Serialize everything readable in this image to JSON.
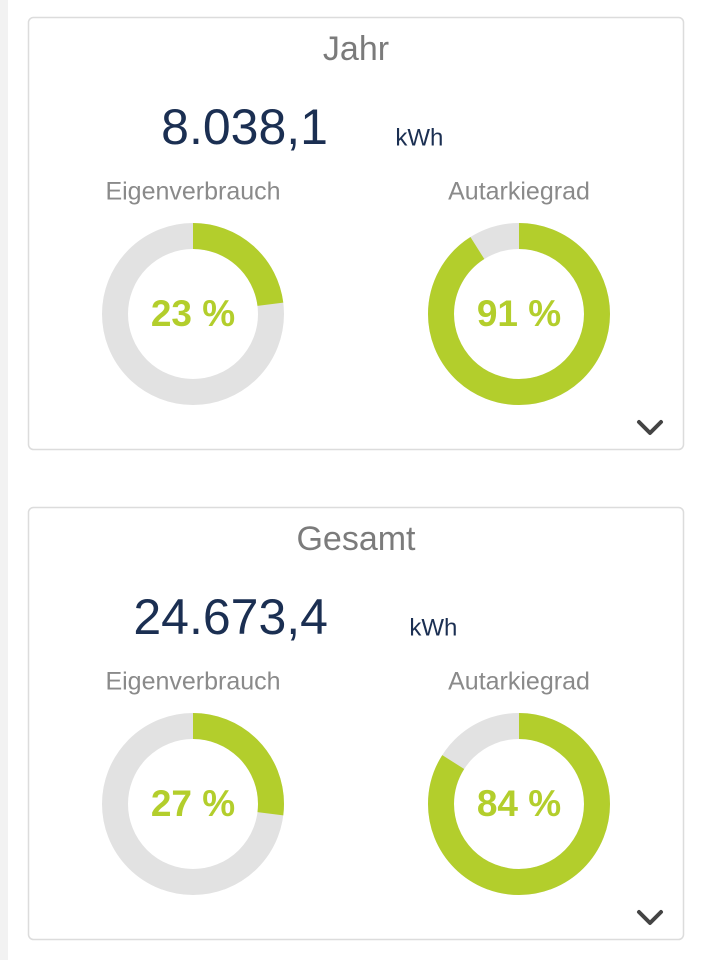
{
  "cards": [
    {
      "title": "Jahr",
      "energy": "8.038,1",
      "unit": "kWh",
      "gauges": [
        {
          "label": "Eigenverbrauch",
          "value": 23,
          "value_label": "23 %"
        },
        {
          "label": "Autarkiegrad",
          "value": 91,
          "value_label": "91 %"
        }
      ]
    },
    {
      "title": "Gesamt",
      "energy": "24.673,4",
      "unit": "kWh",
      "gauges": [
        {
          "label": "Eigenverbrauch",
          "value": 27,
          "value_label": "27 %"
        },
        {
          "label": "Autarkiegrad",
          "value": 84,
          "value_label": "84 %"
        }
      ]
    }
  ]
}
